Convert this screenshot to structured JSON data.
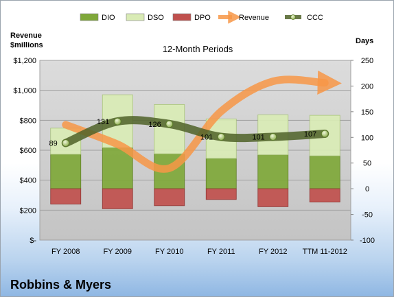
{
  "company": "Robbins & Myers",
  "chart_data": {
    "type": "bar",
    "title": "",
    "subtitle": "12-Month Periods",
    "left_axis_title": "Revenue\n$millions",
    "right_axis_title": "Days",
    "categories": [
      "FY 2008",
      "FY 2009",
      "FY 2010",
      "FY 2011",
      "FY 2012",
      "TTM 11-2012"
    ],
    "left_axis": {
      "min": 0,
      "max": 1200,
      "step": 200,
      "tick_labels": [
        "$-",
        "$200",
        "$400",
        "$600",
        "$800",
        "$1,000",
        "$1,200"
      ]
    },
    "right_axis": {
      "min": -100,
      "max": 250,
      "step": 50,
      "tick_labels": [
        "-100",
        "-50",
        "0",
        "50",
        "100",
        "150",
        "200",
        "250"
      ]
    },
    "legend": {
      "position": "top",
      "entries": [
        "DIO",
        "DSO",
        "DPO",
        "Revenue",
        "CCC"
      ]
    },
    "series": [
      {
        "name": "DIO",
        "axis": "days",
        "kind": "stacked-bar",
        "color": "#7fa83a",
        "values": [
          67,
          80,
          68,
          59,
          66,
          64
        ]
      },
      {
        "name": "DSO",
        "axis": "days",
        "kind": "stacked-bar",
        "color": "#d9ebb5",
        "values": [
          51,
          103,
          96,
          77,
          78,
          79
        ]
      },
      {
        "name": "DPO",
        "axis": "days",
        "kind": "negative-bar",
        "color": "#c0504d",
        "values": [
          -30,
          -39,
          -33,
          -21,
          -35,
          -26
        ]
      },
      {
        "name": "Revenue",
        "axis": "revenue",
        "kind": "line",
        "color": "#f79646",
        "values": [
          770,
          640,
          480,
          860,
          1060,
          1050
        ]
      },
      {
        "name": "CCC",
        "axis": "days",
        "kind": "line",
        "color": "#4f6228",
        "values": [
          89,
          131,
          126,
          101,
          101,
          107
        ],
        "data_labels": [
          "89",
          "131",
          "126",
          "101",
          "101",
          "107"
        ]
      }
    ],
    "grid": true
  }
}
